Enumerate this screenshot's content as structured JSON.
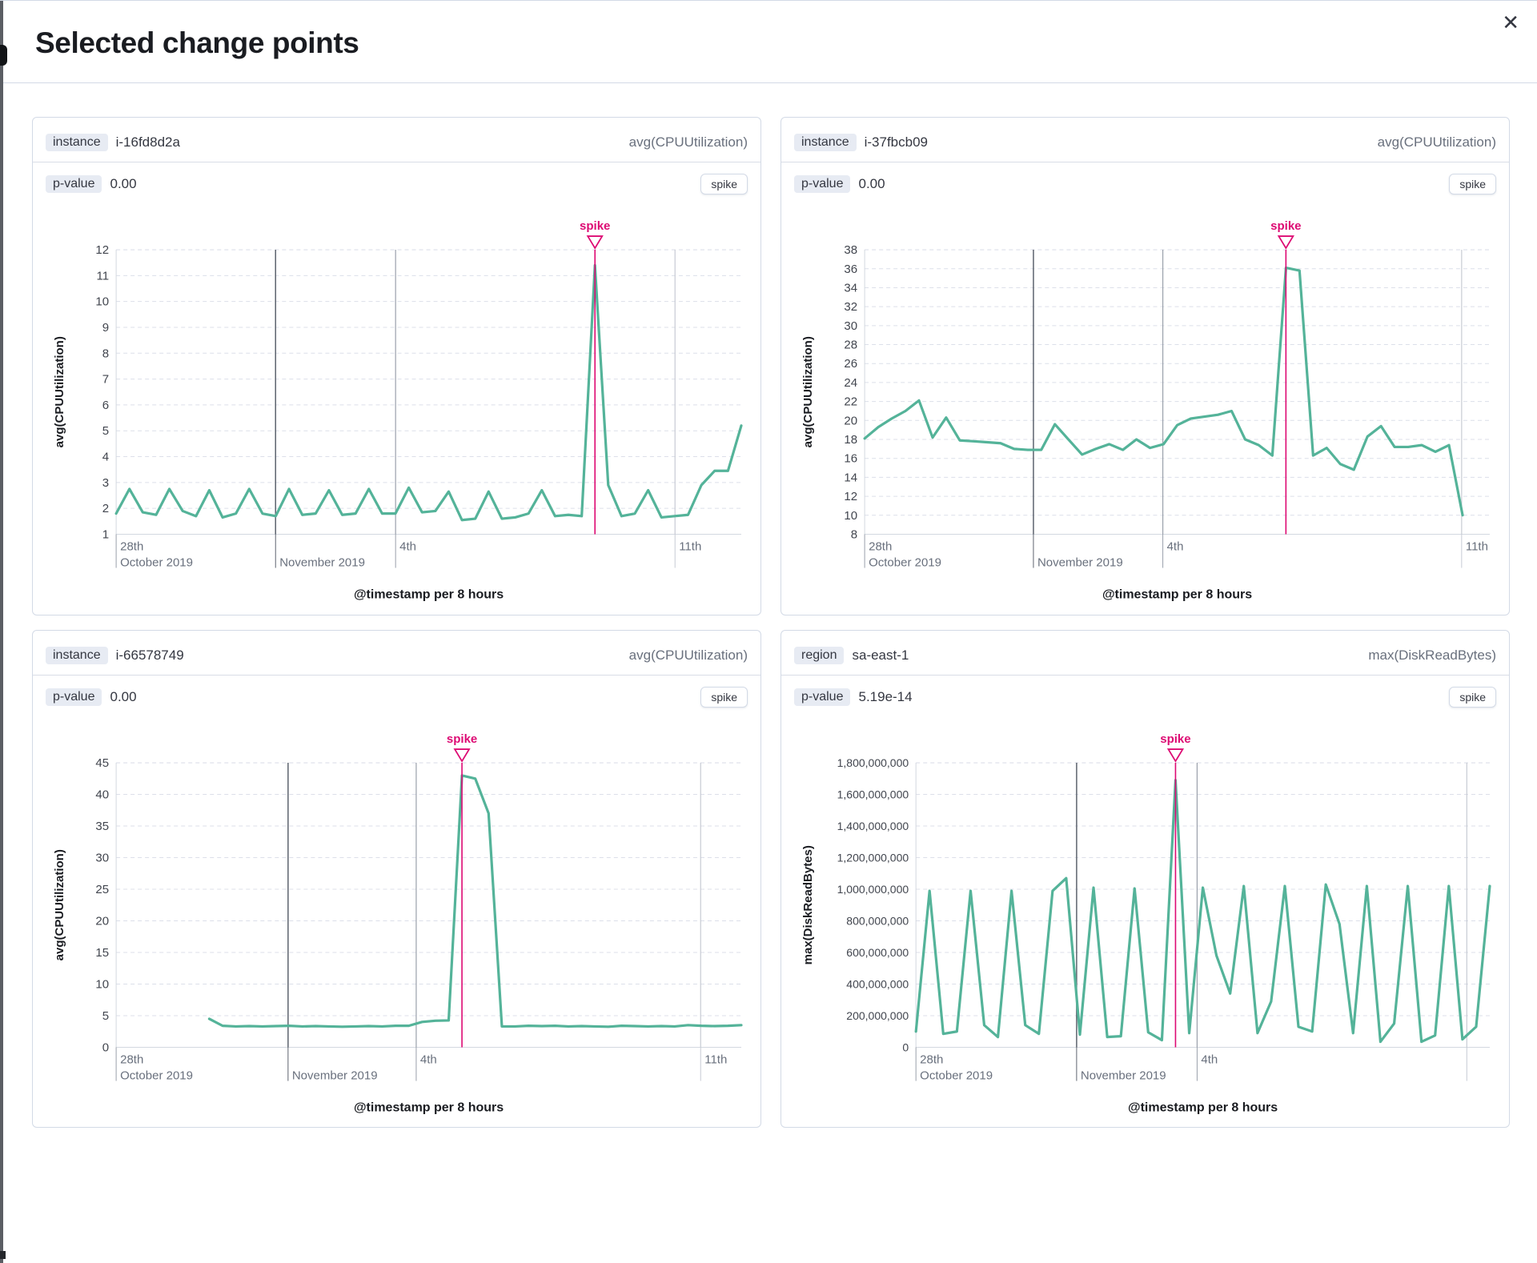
{
  "flyout": {
    "title": "Selected change points",
    "close_glyph": "✕"
  },
  "panels": [
    {
      "key_label": "instance",
      "key_value": "i-16fd8d2a",
      "metric": "avg(CPUUtilization)",
      "p_label": "p-value",
      "p_value": "0.00",
      "badge": "spike"
    },
    {
      "key_label": "instance",
      "key_value": "i-37fbcb09",
      "metric": "avg(CPUUtilization)",
      "p_label": "p-value",
      "p_value": "0.00",
      "badge": "spike"
    },
    {
      "key_label": "instance",
      "key_value": "i-66578749",
      "metric": "avg(CPUUtilization)",
      "p_label": "p-value",
      "p_value": "0.00",
      "badge": "spike"
    },
    {
      "key_label": "region",
      "key_value": "sa-east-1",
      "metric": "max(DiskReadBytes)",
      "p_label": "p-value",
      "p_value": "5.19e-14",
      "badge": "spike"
    }
  ],
  "colors": {
    "line": "#54b399",
    "annotation": "#dd0a73",
    "grid_dashed": "#dcdfe9",
    "axis": "#d3d8e0",
    "grid_dark": "#5d636e",
    "grid_mid": "#9aa0ab",
    "grid_light": "#c7cbd4",
    "tick_text": "#69707d",
    "y_text": "#41454e",
    "title_text": "#1a1c21"
  },
  "chart_data": [
    {
      "type": "line",
      "name": "instance i-16fd8d2a",
      "annotation_label": "spike",
      "xlabel": "@timestamp per 8 hours",
      "ylabel": "avg(CPUUtilization)",
      "ylim": [
        1,
        12
      ],
      "y_axis_width": 88,
      "y_font": 15,
      "y_ticks": [
        [
          1,
          "1"
        ],
        [
          2,
          "2"
        ],
        [
          3,
          "3"
        ],
        [
          4,
          "4"
        ],
        [
          5,
          "5"
        ],
        [
          6,
          "6"
        ],
        [
          7,
          "7"
        ],
        [
          8,
          "8"
        ],
        [
          9,
          "9"
        ],
        [
          10,
          "10"
        ],
        [
          11,
          "11"
        ],
        [
          12,
          "12"
        ]
      ],
      "x_ticks": [
        {
          "pos": 0.0,
          "line1": "28th",
          "line2": "October 2019",
          "grid": "tick"
        },
        {
          "pos": 0.255,
          "line1": "",
          "line2": "November 2019",
          "grid": "dark"
        },
        {
          "pos": 0.447,
          "line1": "4th",
          "line2": "",
          "grid": "mid"
        },
        {
          "pos": 0.894,
          "line1": "11th",
          "line2": "",
          "grid": "light"
        }
      ],
      "spike_index": 36,
      "values": [
        1.8,
        2.75,
        1.85,
        1.75,
        2.75,
        1.9,
        1.7,
        2.7,
        1.65,
        1.8,
        2.75,
        1.8,
        1.7,
        2.75,
        1.75,
        1.8,
        2.7,
        1.75,
        1.8,
        2.75,
        1.8,
        1.8,
        2.8,
        1.85,
        1.9,
        2.65,
        1.55,
        1.6,
        2.65,
        1.6,
        1.65,
        1.8,
        2.7,
        1.7,
        1.75,
        1.7,
        11.4,
        2.9,
        1.7,
        1.8,
        2.7,
        1.65,
        1.7,
        1.75,
        2.9,
        3.45,
        3.45,
        5.2
      ]
    },
    {
      "type": "line",
      "name": "instance i-37fbcb09",
      "annotation_label": "spike",
      "xlabel": "@timestamp per 8 hours",
      "ylabel": "avg(CPUUtilization)",
      "ylim": [
        8,
        38
      ],
      "y_axis_width": 88,
      "y_font": 15,
      "y_ticks": [
        [
          8,
          "8"
        ],
        [
          10,
          "10"
        ],
        [
          12,
          "12"
        ],
        [
          14,
          "14"
        ],
        [
          16,
          "16"
        ],
        [
          18,
          "18"
        ],
        [
          20,
          "20"
        ],
        [
          22,
          "22"
        ],
        [
          24,
          "24"
        ],
        [
          26,
          "26"
        ],
        [
          28,
          "28"
        ],
        [
          30,
          "30"
        ],
        [
          32,
          "32"
        ],
        [
          34,
          "34"
        ],
        [
          36,
          "36"
        ],
        [
          38,
          "38"
        ]
      ],
      "x_ticks": [
        {
          "pos": 0.0,
          "line1": "28th",
          "line2": "October 2019",
          "grid": "tick"
        },
        {
          "pos": 0.27,
          "line1": "",
          "line2": "November 2019",
          "grid": "dark"
        },
        {
          "pos": 0.477,
          "line1": "4th",
          "line2": "",
          "grid": "mid"
        },
        {
          "pos": 0.955,
          "line1": "11th",
          "line2": "",
          "grid": "light"
        }
      ],
      "spike_index": 31,
      "values": [
        18.1,
        19.3,
        20.2,
        21.0,
        22.1,
        18.2,
        20.3,
        17.9,
        17.8,
        17.7,
        17.6,
        17.0,
        16.9,
        16.9,
        19.6,
        18.0,
        16.4,
        17.0,
        17.5,
        16.9,
        18.0,
        17.1,
        17.5,
        19.5,
        20.2,
        20.4,
        20.6,
        21.0,
        18.0,
        17.4,
        16.3,
        36.1,
        35.8,
        16.3,
        17.1,
        15.4,
        14.8,
        18.3,
        19.4,
        17.2,
        17.2,
        17.4,
        16.7,
        17.4,
        10.0,
        null,
        null
      ]
    },
    {
      "type": "line",
      "name": "instance i-66578749",
      "annotation_label": "spike",
      "xlabel": "@timestamp per 8 hours",
      "ylabel": "avg(CPUUtilization)",
      "ylim": [
        0,
        45
      ],
      "y_axis_width": 88,
      "y_font": 15,
      "y_ticks": [
        [
          0,
          "0"
        ],
        [
          5,
          "5"
        ],
        [
          10,
          "10"
        ],
        [
          15,
          "15"
        ],
        [
          20,
          "20"
        ],
        [
          25,
          "25"
        ],
        [
          30,
          "30"
        ],
        [
          35,
          "35"
        ],
        [
          40,
          "40"
        ],
        [
          45,
          "45"
        ]
      ],
      "x_ticks": [
        {
          "pos": 0.0,
          "line1": "28th",
          "line2": "October 2019",
          "grid": "tick"
        },
        {
          "pos": 0.275,
          "line1": "",
          "line2": "November 2019",
          "grid": "dark"
        },
        {
          "pos": 0.48,
          "line1": "4th",
          "line2": "",
          "grid": "mid"
        },
        {
          "pos": 0.935,
          "line1": "11th",
          "line2": "",
          "grid": "light"
        }
      ],
      "spike_index": 26,
      "values": [
        null,
        null,
        null,
        null,
        null,
        null,
        null,
        4.5,
        3.4,
        3.3,
        3.35,
        3.3,
        3.35,
        3.4,
        3.3,
        3.35,
        3.3,
        3.25,
        3.3,
        3.35,
        3.3,
        3.4,
        3.4,
        4.0,
        4.2,
        4.25,
        43.0,
        42.5,
        37.0,
        3.3,
        3.3,
        3.4,
        3.35,
        3.4,
        3.3,
        3.35,
        3.3,
        3.25,
        3.4,
        3.35,
        3.3,
        3.35,
        3.3,
        3.5,
        3.4,
        3.35,
        3.4,
        3.5
      ]
    },
    {
      "type": "line",
      "name": "region sa-east-1",
      "annotation_label": "spike",
      "xlabel": "@timestamp per 8 hours",
      "ylabel": "max(DiskReadBytes)",
      "ylim": [
        0,
        1800000000
      ],
      "y_axis_width": 152,
      "y_font": 14,
      "y_ticks": [
        [
          0,
          "0"
        ],
        [
          200000000,
          "200,000,000"
        ],
        [
          400000000,
          "400,000,000"
        ],
        [
          600000000,
          "600,000,000"
        ],
        [
          800000000,
          "800,000,000"
        ],
        [
          1000000000,
          "1,000,000,000"
        ],
        [
          1200000000,
          "1,200,000,000"
        ],
        [
          1400000000,
          "1,400,000,000"
        ],
        [
          1600000000,
          "1,600,000,000"
        ],
        [
          1800000000,
          "1,800,000,000"
        ]
      ],
      "x_ticks": [
        {
          "pos": 0.0,
          "line1": "28th",
          "line2": "October 2019",
          "grid": "tick"
        },
        {
          "pos": 0.28,
          "line1": "",
          "line2": "November 2019",
          "grid": "dark"
        },
        {
          "pos": 0.49,
          "line1": "4th",
          "line2": "",
          "grid": "mid"
        },
        {
          "pos": 0.96,
          "line1": "",
          "line2": "",
          "grid": "light"
        }
      ],
      "spike_index": 19,
      "values": [
        100000000,
        990000000,
        85000000,
        100000000,
        990000000,
        140000000,
        65000000,
        990000000,
        140000000,
        85000000,
        990000000,
        1070000000,
        80000000,
        1010000000,
        65000000,
        70000000,
        1005000000,
        95000000,
        45000000,
        1690000000,
        90000000,
        1010000000,
        580000000,
        340000000,
        1020000000,
        90000000,
        290000000,
        1020000000,
        130000000,
        100000000,
        1030000000,
        780000000,
        90000000,
        1020000000,
        35000000,
        150000000,
        1020000000,
        35000000,
        75000000,
        1020000000,
        50000000,
        130000000,
        1020000000
      ]
    }
  ]
}
